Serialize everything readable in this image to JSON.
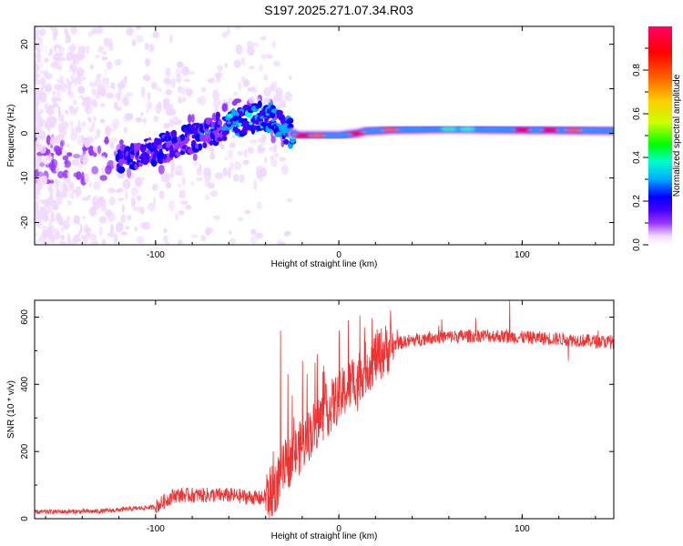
{
  "figure_title": "S197.2025.271.07.34.R03",
  "chart_data": [
    {
      "type": "heatmap",
      "xlabel": "Height of straight line (km)",
      "ylabel": "Frequency (Hz)",
      "xlim": [
        -166,
        150
      ],
      "ylim": [
        -25,
        24
      ],
      "xticks": [
        -100,
        0,
        100
      ],
      "yticks": [
        -20,
        -10,
        0,
        10,
        20
      ],
      "colorbar": {
        "label": "Normalized spectral amplitude",
        "range": [
          0.0,
          1.0
        ],
        "ticks": [
          0.0,
          0.2,
          0.4,
          0.6,
          0.8
        ],
        "colormap": [
          "#ffffff",
          "#f0d8ff",
          "#9933ff",
          "#4400ff",
          "#0000ff",
          "#00aaff",
          "#00ffcc",
          "#00ff00",
          "#ccff00",
          "#ffcc00",
          "#ff6600",
          "#ff0000",
          "#ff0066"
        ]
      },
      "ridge": {
        "description": "spectral peak frequency vs height",
        "x": [
          -120,
          -100,
          -80,
          -60,
          -45,
          -38,
          -33,
          -28,
          -22,
          -10,
          0,
          10,
          15,
          30,
          60,
          100,
          150
        ],
        "y": [
          -6,
          -4,
          -1,
          2,
          3.5,
          4,
          2,
          0.5,
          -0.5,
          -0.5,
          -0.5,
          0,
          0.5,
          0.8,
          1,
          0.8,
          0.6
        ]
      },
      "bands": [
        {
          "x_range": [
            -25,
            150
          ],
          "y": 0.6,
          "amplitude": 1.0
        },
        {
          "x_range": [
            -120,
            -40
          ],
          "y": -2,
          "amplitude": 0.45
        }
      ]
    },
    {
      "type": "line",
      "xlabel": "Height of straight line (km)",
      "ylabel": "SNR (10 * v/v)",
      "xlim": [
        -166,
        150
      ],
      "ylim": [
        0,
        650
      ],
      "xticks": [
        -100,
        0,
        100
      ],
      "yticks": [
        0,
        200,
        400,
        600
      ],
      "series": [
        {
          "name": "SNR",
          "color": "#ee3333",
          "trend_x": [
            -166,
            -130,
            -100,
            -90,
            -60,
            -42,
            -36,
            -30,
            -20,
            -10,
            0,
            10,
            20,
            30,
            50,
            80,
            120,
            150
          ],
          "trend_y": [
            20,
            22,
            35,
            70,
            70,
            60,
            80,
            150,
            220,
            300,
            360,
            420,
            480,
            520,
            540,
            545,
            535,
            525
          ],
          "spike_x": [
            -36,
            -32,
            -28,
            -20,
            -12,
            -5,
            0,
            5,
            10,
            15,
            93,
            125
          ],
          "spike_y": [
            200,
            560,
            430,
            470,
            490,
            330,
            560,
            590,
            320,
            420,
            650,
            470
          ]
        }
      ]
    }
  ]
}
